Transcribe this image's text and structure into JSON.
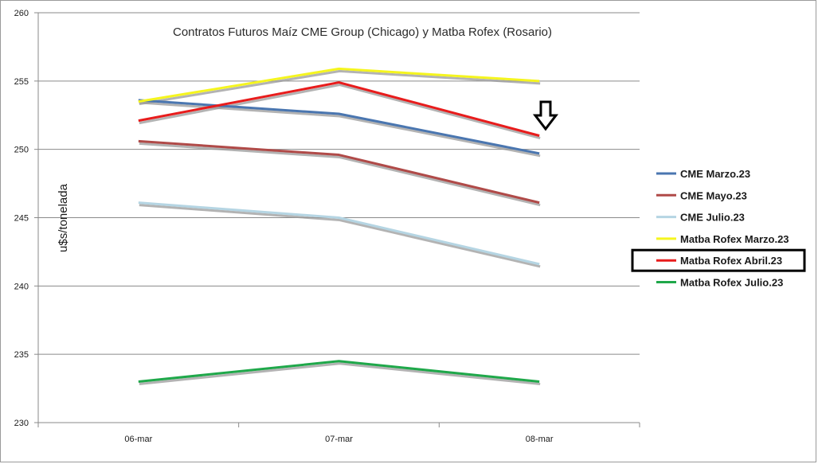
{
  "chart_data": {
    "type": "line",
    "title": "Contratos Futuros Maíz CME Group (Chicago) y Matba Rofex (Rosario)",
    "xlabel": "",
    "ylabel": "u$s/tonelada",
    "categories": [
      "06-mar",
      "07-mar",
      "08-mar"
    ],
    "ylim": [
      230,
      260
    ],
    "yticks": [
      "230",
      "235",
      "240",
      "245",
      "250",
      "255",
      "260"
    ],
    "grid": true,
    "legend_position": "right",
    "highlighted_series": "Matba Rofex Abril.23",
    "annotation": "down-arrow next to Matba Rofex Abril.23 on 08-mar",
    "series": [
      {
        "name": "CME Marzo.23",
        "color": "#4a76b0",
        "values": [
          253.6,
          252.6,
          249.7
        ]
      },
      {
        "name": "CME Mayo.23",
        "color": "#b04a48",
        "values": [
          250.6,
          249.6,
          246.1
        ]
      },
      {
        "name": "CME Julio.23",
        "color": "#b5d5e3",
        "values": [
          246.1,
          245.0,
          241.6
        ]
      },
      {
        "name": "Matba Rofex Marzo.23",
        "color": "#f5f51e",
        "values": [
          253.5,
          255.9,
          255.0
        ]
      },
      {
        "name": "Matba Rofex Abril.23",
        "color": "#e81c1c",
        "values": [
          252.1,
          254.9,
          251.0
        ]
      },
      {
        "name": "Matba Rofex Julio.23",
        "color": "#1fa84a",
        "values": [
          233.0,
          234.5,
          233.0
        ]
      }
    ]
  }
}
